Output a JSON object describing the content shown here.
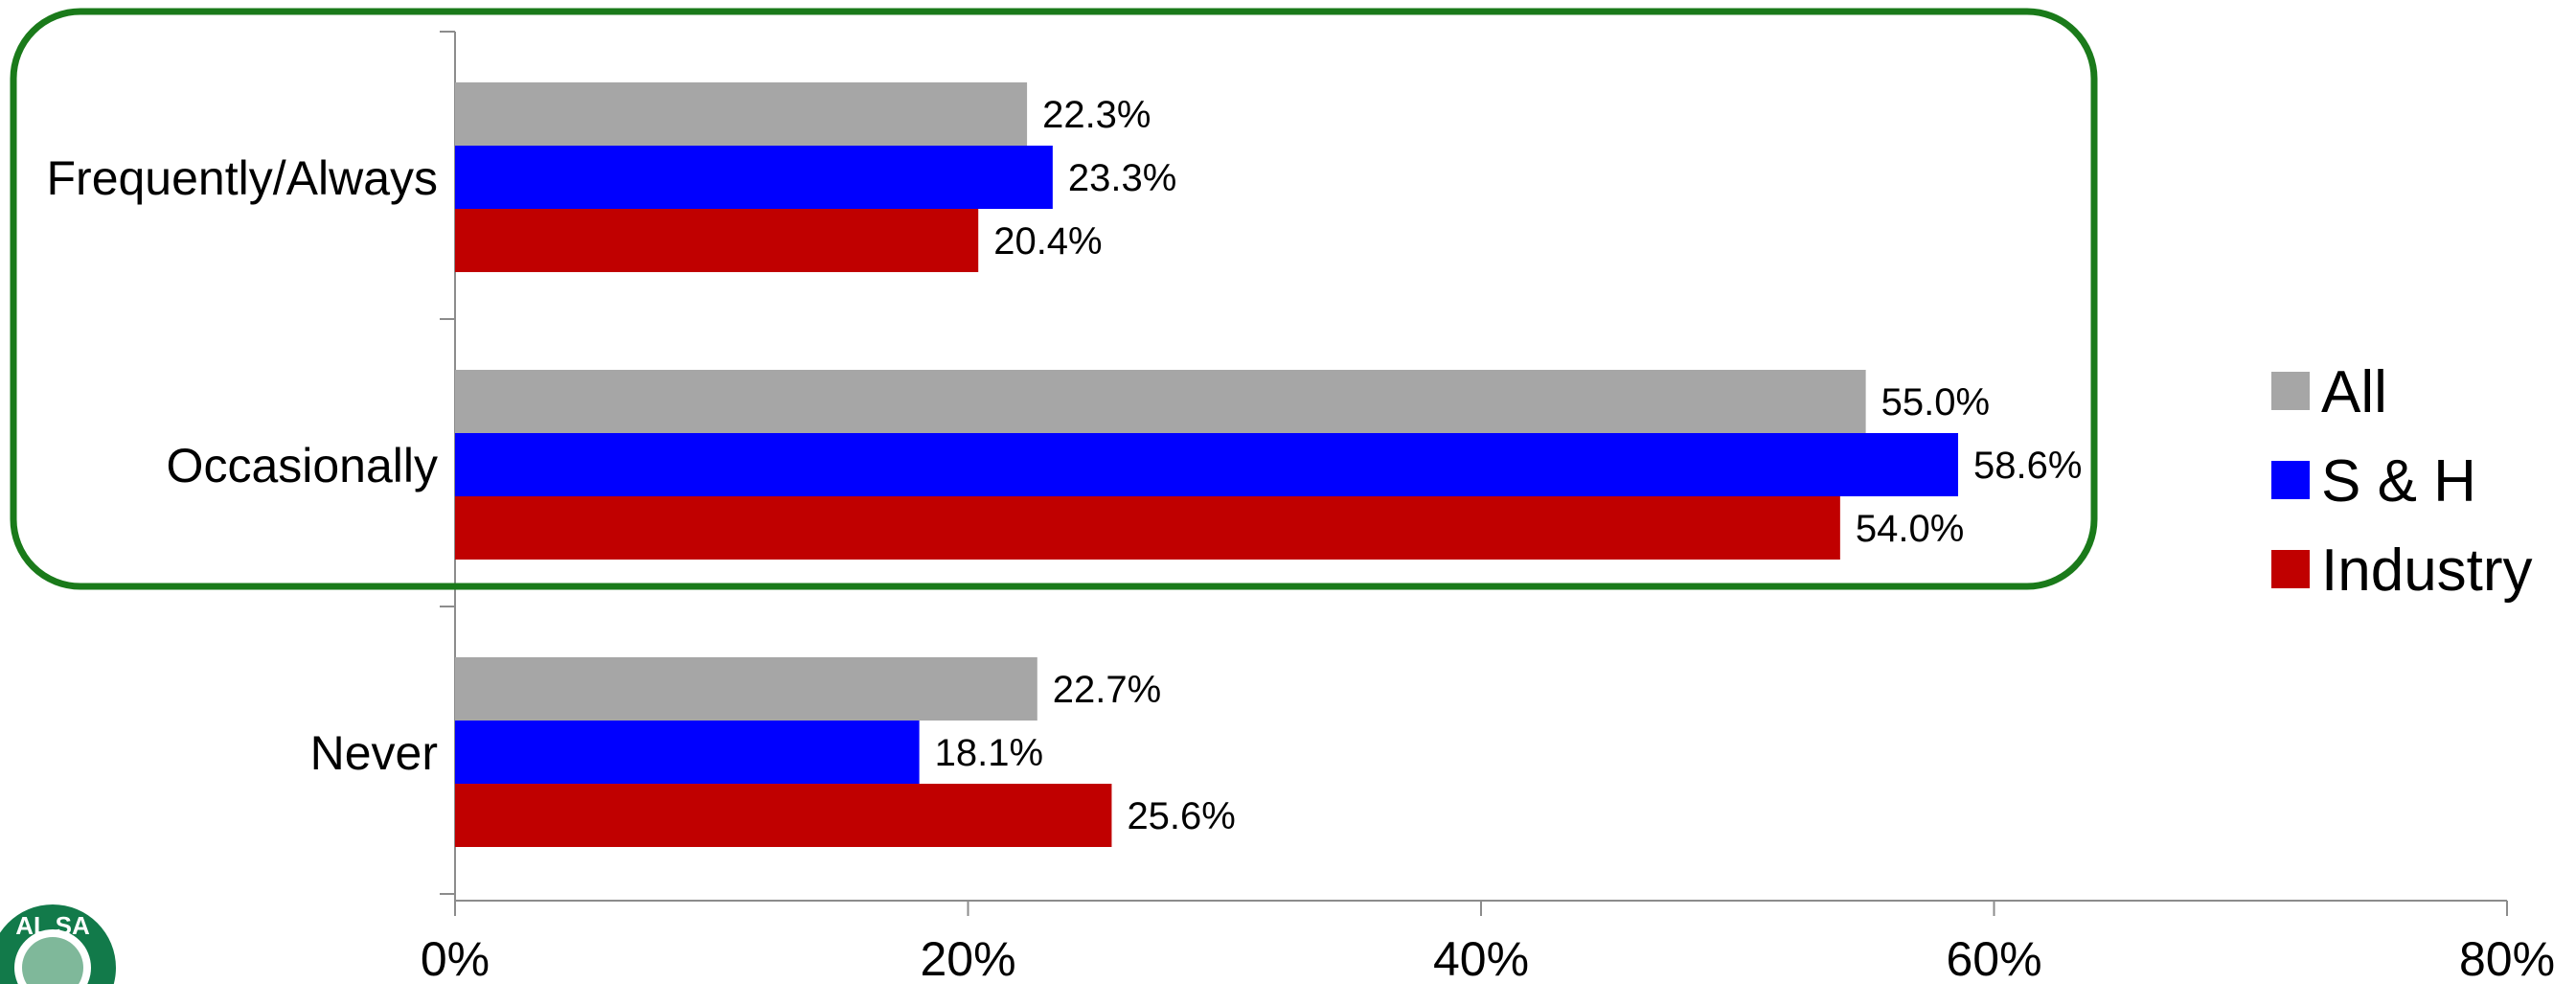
{
  "chart_data": {
    "type": "bar",
    "orientation": "horizontal",
    "categories": [
      "Frequently/Always",
      "Occasionally",
      "Never"
    ],
    "series": [
      {
        "name": "All",
        "color": "#a6a6a6",
        "values": [
          22.3,
          55.0,
          22.7
        ],
        "labels": [
          "22.3%",
          "55.0%",
          "22.7%"
        ]
      },
      {
        "name": "S & H",
        "color": "#0000ff",
        "values": [
          23.3,
          58.6,
          18.1
        ],
        "labels": [
          "23.3%",
          "58.6%",
          "18.1%"
        ]
      },
      {
        "name": "Industry",
        "color": "#c00000",
        "values": [
          20.4,
          54.0,
          25.6
        ],
        "labels": [
          "20.4%",
          "54.0%",
          "25.6%"
        ]
      }
    ],
    "xlim": [
      0,
      80
    ],
    "x_ticks": [
      0,
      20,
      40,
      60,
      80
    ],
    "x_tick_labels": [
      "0%",
      "20%",
      "40%",
      "60%",
      "80%"
    ],
    "xlabel": "",
    "ylabel": "",
    "title": "",
    "grid": false,
    "legend_position": "right",
    "highlight": {
      "color": "#1a7a1a",
      "categories": [
        "Frequently/Always",
        "Occasionally"
      ]
    },
    "logo": {
      "icon": "seal-logo-icon",
      "text": "AL SA"
    }
  }
}
